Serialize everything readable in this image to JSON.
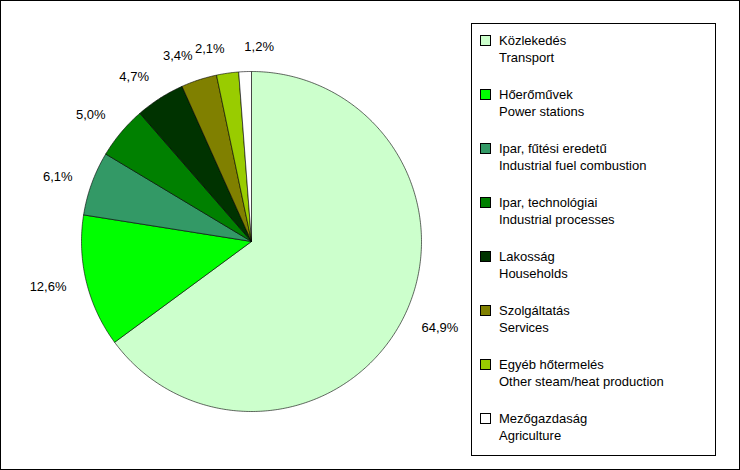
{
  "chart_data": {
    "type": "pie",
    "categories": [
      "Közlekedés\nTransport",
      "Hőerőművek\nPower stations",
      "Ipar, fűtési eredetű\nIndustrial fuel combustion",
      "Ipar, technológiai\nIndustrial processes",
      "Lakosság\nHouseholds",
      "Szolgáltatás\nServices",
      "Egyéb hőtermelés\nOther steam/heat production",
      "Mezőgazdaság\nAgriculture"
    ],
    "values": [
      64.9,
      12.6,
      6.1,
      5.0,
      4.7,
      3.4,
      2.1,
      1.2
    ],
    "value_labels": [
      "64,9%",
      "12,6%",
      "6,1%",
      "5,0%",
      "4,7%",
      "3,4%",
      "2,1%",
      "1,2%"
    ],
    "colors": [
      "#ccffcc",
      "#00ff00",
      "#339966",
      "#008000",
      "#003300",
      "#808000",
      "#99cc00",
      "#ffffff"
    ],
    "data_labels": true,
    "legend": "right"
  }
}
